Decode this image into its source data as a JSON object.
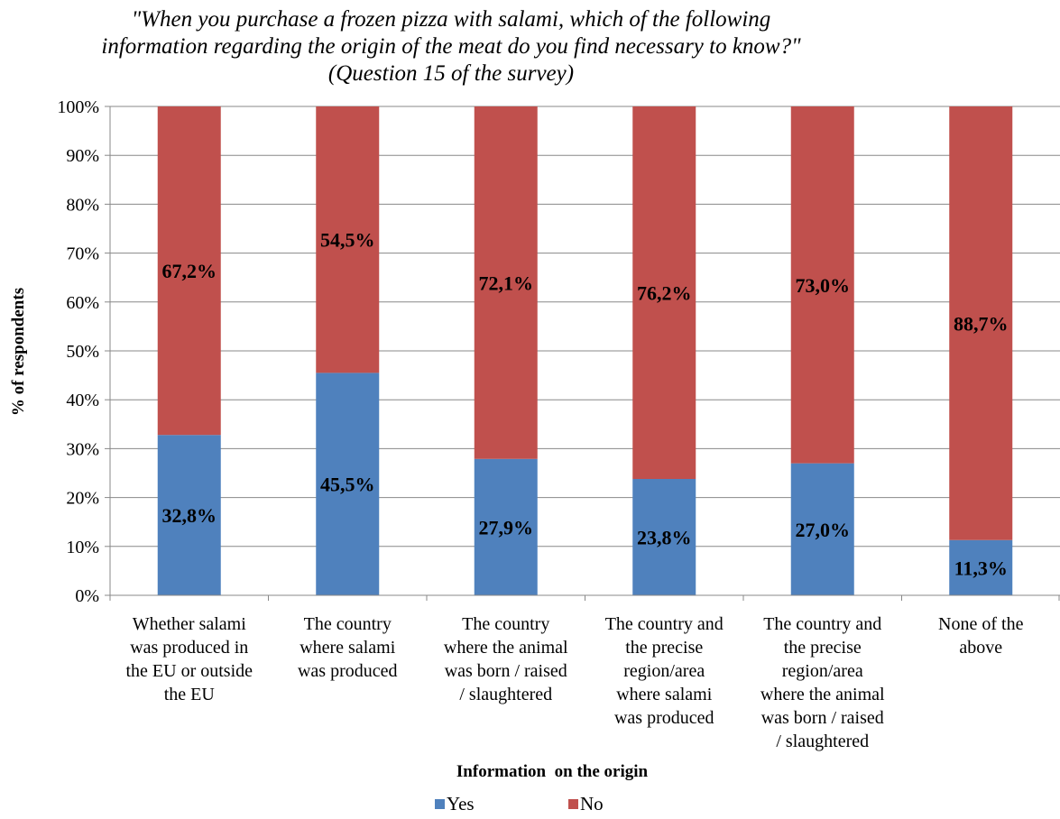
{
  "chart_data": {
    "type": "bar",
    "stacked": true,
    "title_lines": [
      "\"When you purchase a frozen pizza with salami, which of the following",
      "information regarding the origin of the meat do you find necessary to know?\"",
      "(Question 15 of the survey)"
    ],
    "ylabel": "% of respondents",
    "xlabel": "Information  on the origin",
    "ylim": [
      0,
      100
    ],
    "yticks": [
      "0%",
      "10%",
      "20%",
      "30%",
      "40%",
      "50%",
      "60%",
      "70%",
      "80%",
      "90%",
      "100%"
    ],
    "categories": [
      [
        "Whether salami",
        "was produced in",
        "the EU or outside",
        "the EU"
      ],
      [
        "The country",
        "where salami",
        "was produced"
      ],
      [
        "The country",
        "where the animal",
        "was born / raised",
        "/ slaughtered"
      ],
      [
        "The country and",
        "the precise",
        "region/area",
        "where salami",
        "was produced"
      ],
      [
        "The country and",
        "the precise",
        "region/area",
        "where the animal",
        "was born / raised",
        "/ slaughtered"
      ],
      [
        "None of the",
        "above"
      ]
    ],
    "series": [
      {
        "name": "Yes",
        "color": "#4F81BD",
        "values": [
          32.8,
          45.5,
          27.9,
          23.8,
          27.0,
          11.3
        ],
        "labels": [
          "32,8%",
          "45,5%",
          "27,9%",
          "23,8%",
          "27,0%",
          "11,3%"
        ]
      },
      {
        "name": "No",
        "color": "#C0504D",
        "values": [
          67.2,
          54.5,
          72.1,
          76.2,
          73.0,
          88.7
        ],
        "labels": [
          "67,2%",
          "54,5%",
          "72,1%",
          "76,2%",
          "73,0%",
          "88,7%"
        ]
      }
    ],
    "grid": true,
    "legend_position": "bottom"
  }
}
